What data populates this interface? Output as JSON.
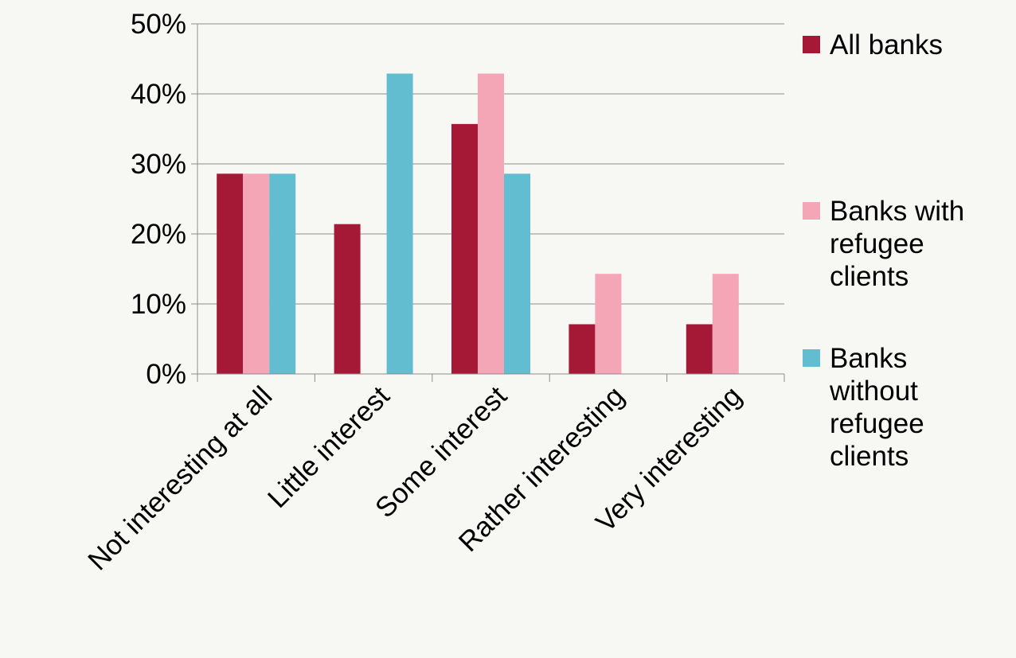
{
  "chart_data": {
    "type": "bar",
    "categories": [
      "Not interesting at all",
      "Little interest",
      "Some interest",
      "Rather interesting",
      "Very interesting"
    ],
    "series": [
      {
        "name": "All banks",
        "legend_lines": [
          "All banks"
        ],
        "color": "#a51836",
        "values": [
          28.6,
          21.4,
          35.7,
          7.1,
          7.1
        ]
      },
      {
        "name": "Banks with refugee clients",
        "legend_lines": [
          "Banks with",
          "refugee",
          "clients"
        ],
        "color": "#f4a6b7",
        "values": [
          28.6,
          0,
          42.9,
          14.3,
          14.3
        ]
      },
      {
        "name": "Banks without refugee clients",
        "legend_lines": [
          "Banks",
          "without",
          "refugee",
          "clients"
        ],
        "color": "#62bdd0",
        "values": [
          28.6,
          42.9,
          28.6,
          0,
          0
        ]
      }
    ],
    "ylim": [
      0,
      50
    ],
    "yticks": [
      0,
      10,
      20,
      30,
      40,
      50
    ],
    "ytick_labels": [
      "0%",
      "10%",
      "20%",
      "30%",
      "40%",
      "50%"
    ],
    "grid": true,
    "legend_position": "right",
    "title": "",
    "xlabel": "",
    "ylabel": ""
  }
}
